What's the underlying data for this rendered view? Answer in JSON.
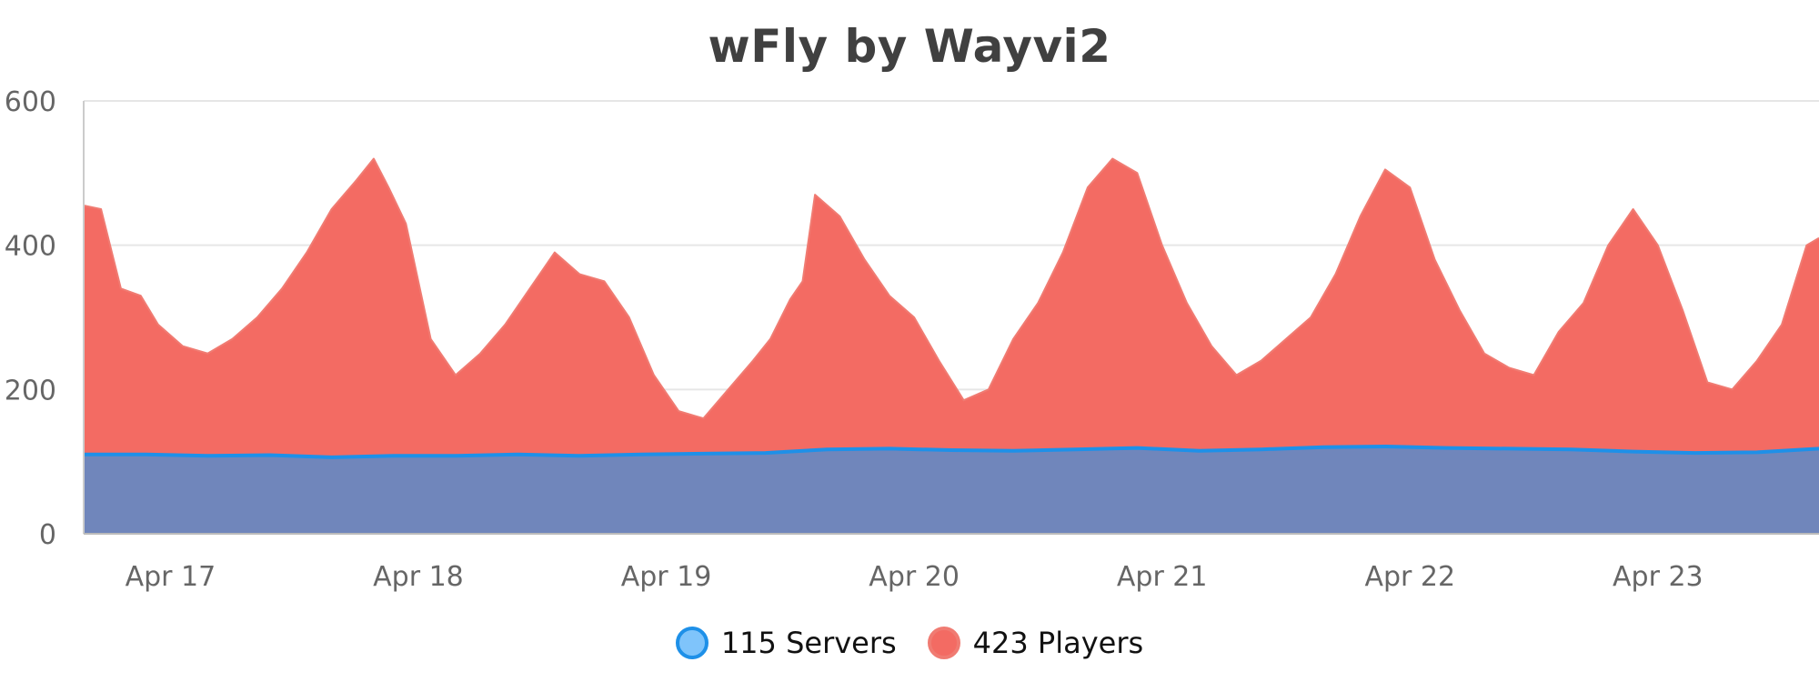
{
  "chart_data": {
    "type": "area",
    "title": "wFly by Wayvi2",
    "xlabel": "",
    "ylabel": "",
    "ylim": [
      0,
      600
    ],
    "y_ticks": [
      0,
      200,
      400,
      600
    ],
    "x_tick_labels": [
      "Apr 17",
      "Apr 18",
      "Apr 19",
      "Apr 20",
      "Apr 21",
      "Apr 22",
      "Apr 23"
    ],
    "x_start_day": 16.65,
    "x_end_day": 23.65,
    "grid": true,
    "legend_position": "bottom-center",
    "series": [
      {
        "name": "115 Servers",
        "color": "#1e90e8",
        "fill": "#7086bb",
        "x": [
          16.65,
          16.9,
          17.15,
          17.4,
          17.65,
          17.9,
          18.15,
          18.4,
          18.65,
          18.9,
          19.15,
          19.4,
          19.65,
          19.9,
          20.15,
          20.4,
          20.65,
          20.9,
          21.15,
          21.4,
          21.65,
          21.9,
          22.15,
          22.4,
          22.65,
          22.9,
          23.15,
          23.4,
          23.65
        ],
        "values": [
          110,
          110,
          108,
          109,
          106,
          108,
          108,
          110,
          108,
          110,
          111,
          112,
          117,
          118,
          116,
          115,
          117,
          119,
          115,
          117,
          120,
          121,
          119,
          118,
          117,
          114,
          112,
          113,
          118
        ]
      },
      {
        "name": "423 Players",
        "color": "#f07b72",
        "fill": "#f36b63",
        "x": [
          16.65,
          16.72,
          16.8,
          16.88,
          16.95,
          17.05,
          17.15,
          17.25,
          17.35,
          17.45,
          17.55,
          17.65,
          17.75,
          17.82,
          17.88,
          17.95,
          18.05,
          18.15,
          18.25,
          18.35,
          18.45,
          18.5,
          18.55,
          18.65,
          18.75,
          18.85,
          18.95,
          19.05,
          19.15,
          19.25,
          19.35,
          19.42,
          19.5,
          19.55,
          19.6,
          19.7,
          19.8,
          19.9,
          20.0,
          20.1,
          20.2,
          20.3,
          20.4,
          20.5,
          20.6,
          20.7,
          20.8,
          20.9,
          21.0,
          21.1,
          21.2,
          21.3,
          21.4,
          21.5,
          21.6,
          21.7,
          21.8,
          21.9,
          22.0,
          22.1,
          22.2,
          22.3,
          22.4,
          22.5,
          22.6,
          22.7,
          22.8,
          22.9,
          23.0,
          23.1,
          23.2,
          23.3,
          23.4,
          23.5,
          23.6,
          23.65
        ],
        "values": [
          455,
          450,
          340,
          330,
          290,
          260,
          250,
          270,
          300,
          340,
          390,
          450,
          490,
          520,
          480,
          430,
          270,
          220,
          250,
          290,
          340,
          365,
          390,
          360,
          350,
          300,
          220,
          170,
          160,
          200,
          240,
          270,
          325,
          350,
          470,
          440,
          380,
          330,
          300,
          240,
          185,
          200,
          270,
          320,
          390,
          480,
          520,
          500,
          400,
          320,
          260,
          220,
          240,
          270,
          300,
          360,
          440,
          505,
          480,
          380,
          310,
          250,
          230,
          220,
          280,
          320,
          400,
          450,
          400,
          310,
          210,
          200,
          240,
          290,
          400,
          410
        ]
      }
    ]
  },
  "legend": {
    "items": [
      {
        "label": "115 Servers",
        "color": "#1e90e8",
        "fill": "#7fc4fb"
      },
      {
        "label": "423 Players",
        "color": "#f07b72",
        "fill": "#f36b63"
      }
    ]
  },
  "colors": {
    "grid": "#e6e6e6",
    "axis_text": "#666666",
    "title": "#404040"
  }
}
